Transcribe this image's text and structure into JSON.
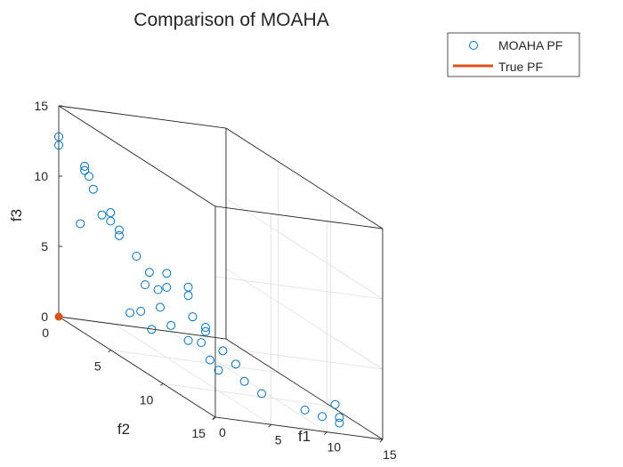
{
  "chart_data": {
    "type": "scatter3d",
    "title": "Comparison of MOAHA",
    "xlabel": "f1",
    "ylabel": "f2",
    "zlabel": "f3",
    "xlim": [
      0,
      15
    ],
    "ylim": [
      0,
      15
    ],
    "zlim": [
      0,
      15
    ],
    "x_ticks": [
      "0",
      "5",
      "10",
      "15"
    ],
    "y_ticks": [
      "0",
      "5",
      "10",
      "15"
    ],
    "z_ticks": [
      "0",
      "5",
      "10",
      "15"
    ],
    "grid": true,
    "legend_position": "top-right",
    "series": [
      {
        "name": "MOAHA PF",
        "marker": "circle",
        "color": "#0072BD",
        "points": [
          [
            0.0,
            0.0,
            12.8
          ],
          [
            0.0,
            0.0,
            12.2
          ],
          [
            1.2,
            1.2,
            11.4
          ],
          [
            1.2,
            1.2,
            11.1
          ],
          [
            1.6,
            1.6,
            10.0
          ],
          [
            2.4,
            2.4,
            8.8
          ],
          [
            2.4,
            2.4,
            8.2
          ],
          [
            2.0,
            2.0,
            8.4
          ],
          [
            2.8,
            2.8,
            7.8
          ],
          [
            2.8,
            2.8,
            7.4
          ],
          [
            1.0,
            1.0,
            7.2
          ],
          [
            5.0,
            5.0,
            6.0
          ],
          [
            5.0,
            5.0,
            5.0
          ],
          [
            4.2,
            4.2,
            5.6
          ],
          [
            6.0,
            6.0,
            5.6
          ],
          [
            6.0,
            6.0,
            5.0
          ],
          [
            6.8,
            6.8,
            3.2
          ],
          [
            6.8,
            6.8,
            2.9
          ],
          [
            8.2,
            8.2,
            1.4
          ],
          [
            6.2,
            6.2,
            3.6
          ],
          [
            4.7,
            4.7,
            3.4
          ],
          [
            7.4,
            7.4,
            0.5
          ],
          [
            8.6,
            8.6,
            0.4
          ],
          [
            9.4,
            9.4,
            0.0
          ],
          [
            11.4,
            11.4,
            0.0
          ],
          [
            5.2,
            5.2,
            2.4
          ],
          [
            3.8,
            3.8,
            2.6
          ],
          [
            3.3,
            3.3,
            2.2
          ],
          [
            4.3,
            4.3,
            1.6
          ],
          [
            1.4,
            1.4,
            10.8
          ],
          [
            3.6,
            3.6,
            6.4
          ],
          [
            4.6,
            4.6,
            4.6
          ],
          [
            7.0,
            7.0,
            1.0
          ],
          [
            6.0,
            6.0,
            1.8
          ],
          [
            6.6,
            6.6,
            2.0
          ],
          [
            12.2,
            12.2,
            0.0
          ],
          [
            13.0,
            13.0,
            0.0
          ],
          [
            13.0,
            13.0,
            0.4
          ],
          [
            12.8,
            12.8,
            1.2
          ],
          [
            7.6,
            7.6,
            2.0
          ],
          [
            4.0,
            4.0,
            4.6
          ]
        ]
      },
      {
        "name": "True PF",
        "marker": "line",
        "color": "#D95319",
        "points": [
          [
            0.0,
            0.0,
            0.0
          ]
        ]
      }
    ]
  }
}
